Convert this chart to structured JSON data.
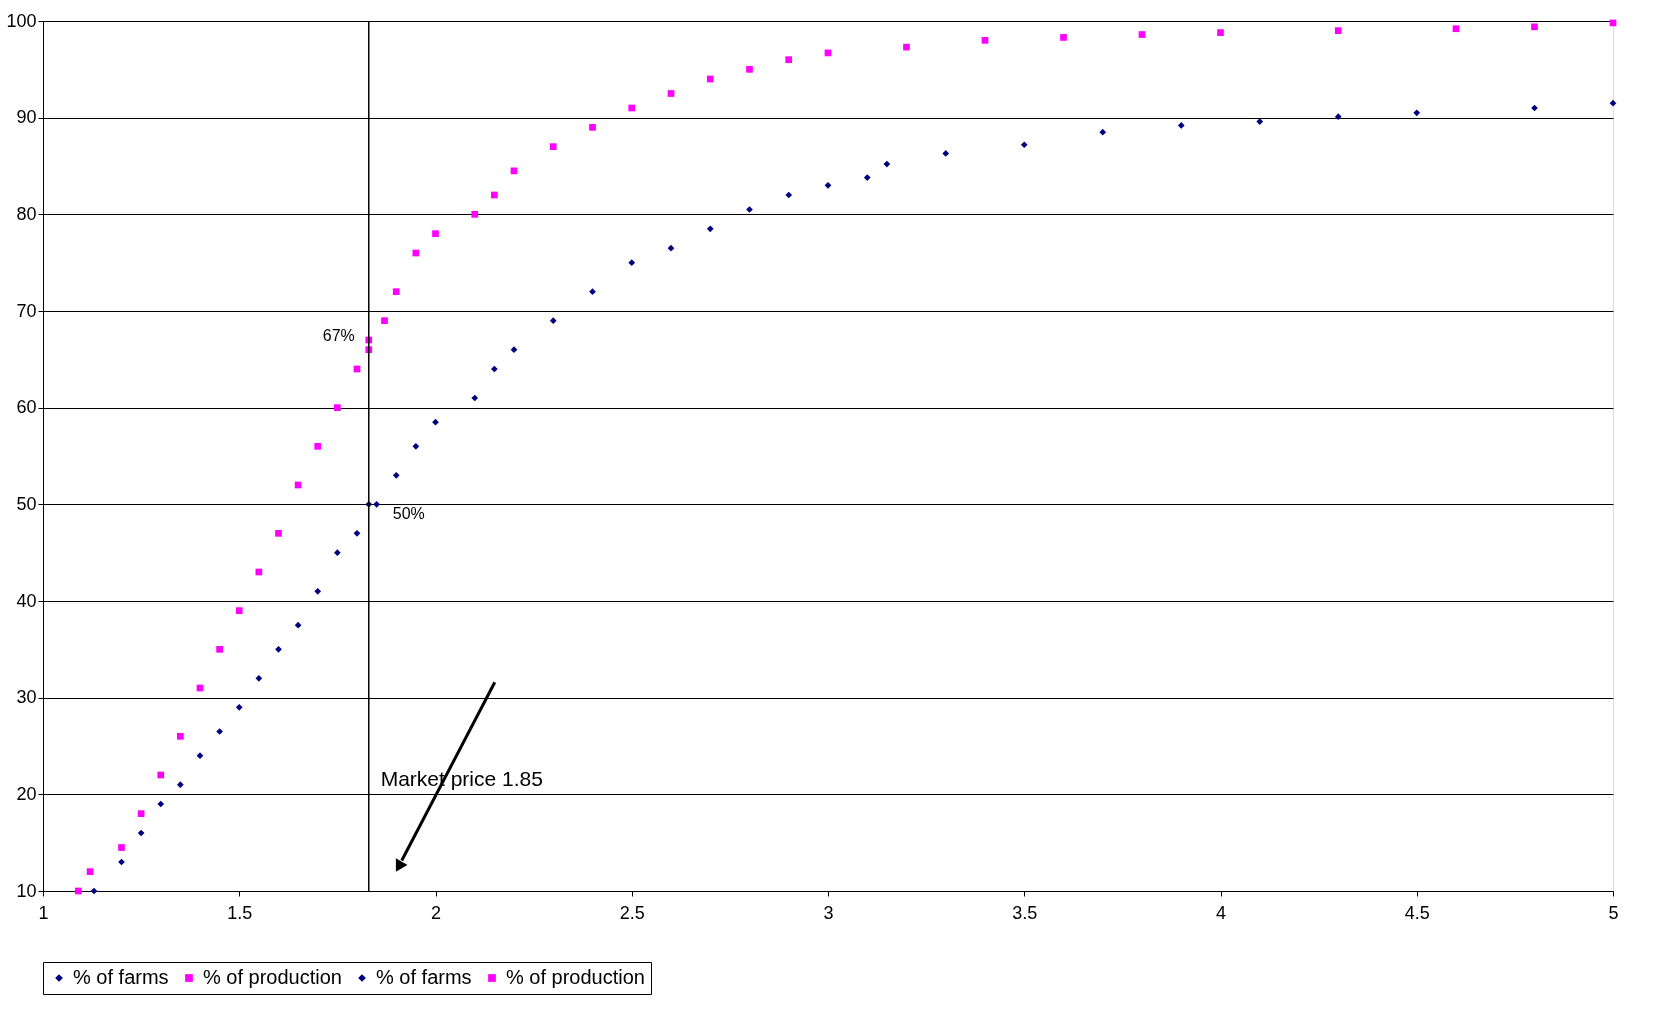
{
  "chart_data": {
    "type": "scatter",
    "xlim": [
      1,
      5
    ],
    "ylim": [
      10,
      100
    ],
    "xticks": [
      1,
      1.5,
      2,
      2.5,
      3,
      3.5,
      4,
      4.5,
      5
    ],
    "yticks": [
      10,
      20,
      30,
      40,
      50,
      60,
      70,
      80,
      90,
      100
    ],
    "grid": "y",
    "legend": "bottom",
    "series": [
      {
        "name": "% of farms",
        "color": "#000080",
        "marker": "diamond",
        "x": [
          1.13,
          1.2,
          1.25,
          1.3,
          1.35,
          1.4,
          1.45,
          1.5,
          1.55,
          1.6,
          1.65,
          1.7,
          1.75,
          1.8,
          1.85,
          1.9,
          1.95,
          2.0,
          2.1,
          2.15,
          2.2,
          2.3,
          2.4,
          2.5,
          2.6,
          2.7,
          2.8,
          2.9,
          3.0,
          3.1,
          3.15,
          3.3,
          3.5,
          3.7,
          3.9,
          4.1,
          4.3,
          4.5,
          4.8,
          5.0
        ],
        "values": [
          10,
          13,
          16,
          19,
          21,
          24,
          26.5,
          29,
          32,
          35,
          37.5,
          41,
          45,
          47,
          50,
          53,
          56,
          58.5,
          61,
          64,
          66,
          69,
          72,
          75,
          76.5,
          78.5,
          80.5,
          82,
          83,
          83.8,
          85.2,
          86.3,
          87.2,
          88.5,
          89.2,
          89.6,
          90.1,
          90.5,
          91,
          91.5
        ]
      },
      {
        "name": "% of production",
        "color": "#ff00ff",
        "marker": "square",
        "x": [
          1.09,
          1.12,
          1.2,
          1.25,
          1.3,
          1.35,
          1.4,
          1.45,
          1.5,
          1.55,
          1.6,
          1.65,
          1.7,
          1.75,
          1.8,
          1.83,
          1.87,
          1.9,
          1.95,
          2.0,
          2.1,
          2.15,
          2.2,
          2.3,
          2.4,
          2.5,
          2.6,
          2.7,
          2.8,
          2.9,
          3.0,
          3.2,
          3.4,
          3.6,
          3.8,
          4.0,
          4.3,
          4.6,
          4.8,
          5.0
        ],
        "values": [
          10,
          12,
          14.5,
          18,
          22,
          26,
          31,
          35,
          39,
          43,
          47,
          52,
          56,
          60,
          64,
          66,
          69,
          72,
          76,
          78,
          80,
          82,
          84.5,
          87,
          89,
          91,
          92.5,
          94,
          95,
          96,
          96.7,
          97.3,
          98,
          98.3,
          98.6,
          98.8,
          99,
          99.2,
          99.4,
          99.8
        ]
      },
      {
        "name": "% of farms",
        "color": "#000080",
        "marker": "diamond",
        "x": [
          1.83
        ],
        "values": [
          50
        ],
        "value_labels": [
          "50%"
        ]
      },
      {
        "name": "% of production",
        "color": "#ff00ff",
        "marker": "square",
        "x": [
          1.83
        ],
        "values": [
          67
        ],
        "value_labels": [
          "67%"
        ]
      }
    ],
    "ref_lines": [
      {
        "axis": "x",
        "value": 1.83,
        "color": "#000000",
        "label": "Market price 1.85"
      }
    ]
  }
}
